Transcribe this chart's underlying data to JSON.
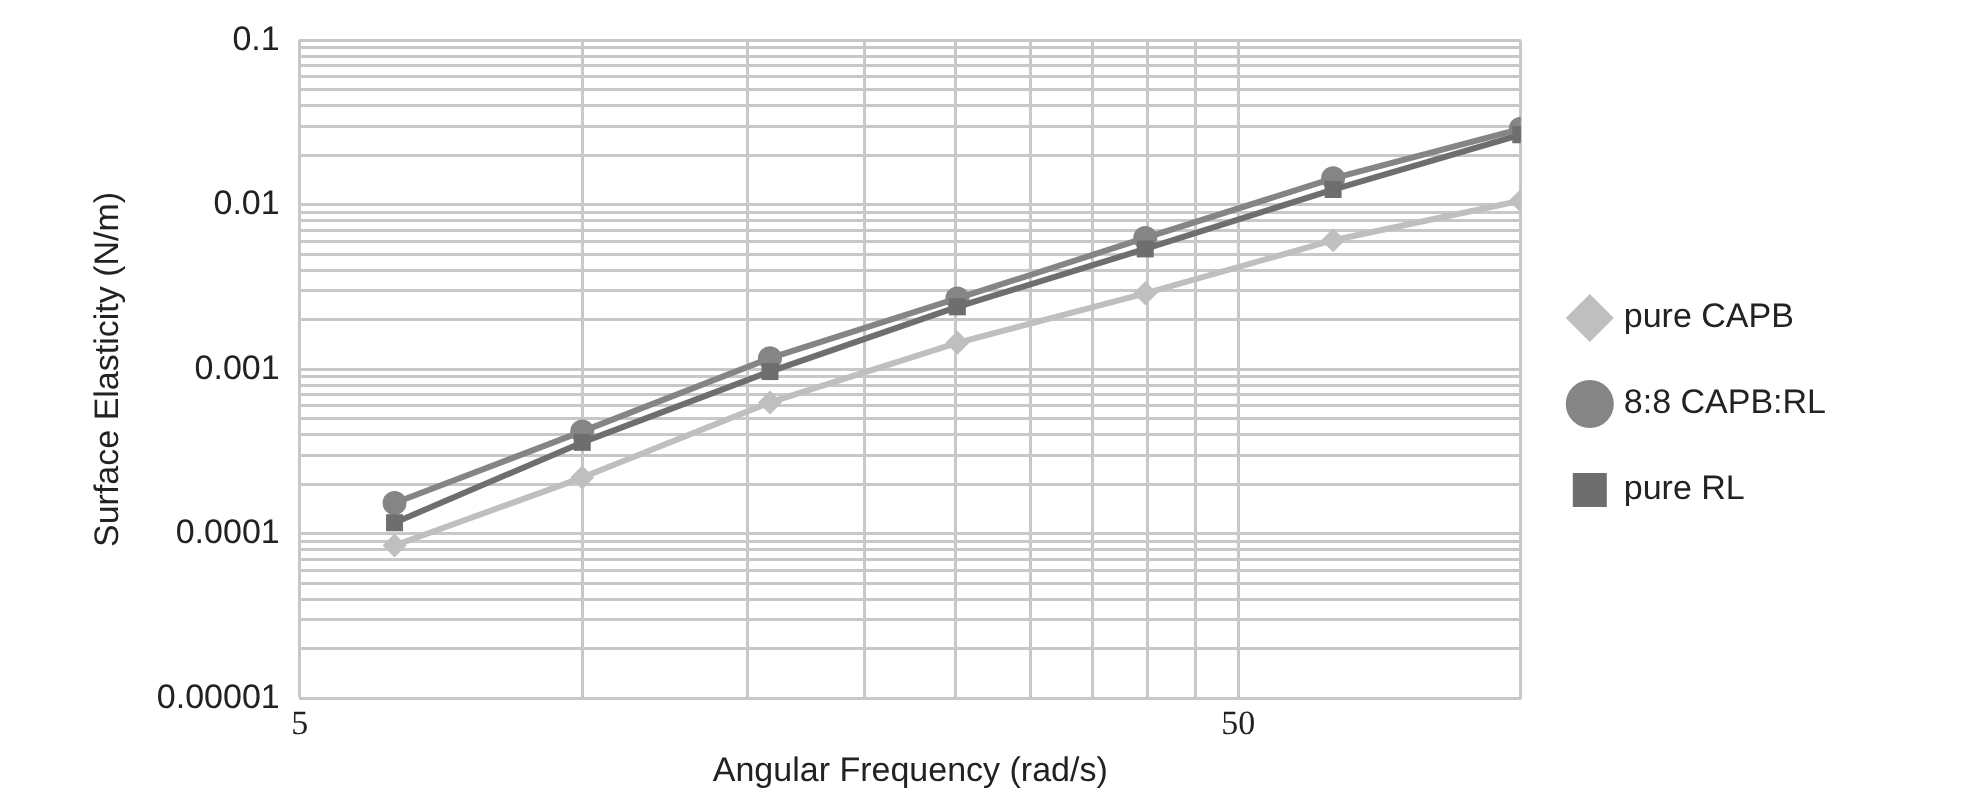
{
  "chart_data": {
    "type": "line",
    "xlabel": "Angular Frequency (rad/s)",
    "ylabel": "Surface Elasticity (N/m)",
    "log": "xy",
    "grid": true,
    "legend": "right",
    "line_style": "solid",
    "x": [
      6.31,
      10,
      15.85,
      25.1,
      39.8,
      63.1,
      100
    ],
    "xlim": [
      5,
      100
    ],
    "xticks": [
      5,
      {
        "value": 10,
        "label": null
      },
      {
        "value": 15,
        "label": null
      },
      {
        "value": 20,
        "label": null
      },
      {
        "value": 25,
        "label": null
      },
      {
        "value": 30,
        "label": null
      },
      {
        "value": 35,
        "label": null
      },
      {
        "value": 40,
        "label": null
      },
      {
        "value": 45,
        "label": null
      },
      50,
      {
        "value": 100,
        "label": null
      }
    ],
    "ylim": [
      1e-05,
      0.1
    ],
    "yticks": [
      {
        "value": 1e-05,
        "label": "0.00001"
      },
      {
        "value": 2e-05,
        "label": null
      },
      {
        "value": 3e-05,
        "label": null
      },
      {
        "value": 4e-05,
        "label": null
      },
      {
        "value": 5e-05,
        "label": null
      },
      {
        "value": 6e-05,
        "label": null
      },
      {
        "value": 7e-05,
        "label": null
      },
      {
        "value": 8e-05,
        "label": null
      },
      {
        "value": 9e-05,
        "label": null
      },
      0.0001,
      {
        "value": 0.0002,
        "label": null
      },
      {
        "value": 0.0003,
        "label": null
      },
      {
        "value": 0.0004,
        "label": null
      },
      {
        "value": 0.0005,
        "label": null
      },
      {
        "value": 0.0006,
        "label": null
      },
      {
        "value": 0.0007,
        "label": null
      },
      {
        "value": 0.0008,
        "label": null
      },
      {
        "value": 0.0009,
        "label": null
      },
      0.001,
      {
        "value": 0.002,
        "label": null
      },
      {
        "value": 0.003,
        "label": null
      },
      {
        "value": 0.004,
        "label": null
      },
      {
        "value": 0.005,
        "label": null
      },
      {
        "value": 0.006,
        "label": null
      },
      {
        "value": 0.007,
        "label": null
      },
      {
        "value": 0.008,
        "label": null
      },
      {
        "value": 0.009,
        "label": null
      },
      0.01,
      {
        "value": 0.02,
        "label": null
      },
      {
        "value": 0.03,
        "label": null
      },
      {
        "value": 0.04,
        "label": null
      },
      {
        "value": 0.05,
        "label": null
      },
      {
        "value": 0.06,
        "label": null
      },
      {
        "value": 0.07,
        "label": null
      },
      {
        "value": 0.08,
        "label": null
      },
      {
        "value": 0.09,
        "label": null
      },
      0.1
    ],
    "series": [
      {
        "name": "pure CAPB",
        "color": "#bfbfbf",
        "marker": "diamond",
        "values": [
          8.5e-05,
          0.00022,
          0.00063,
          0.00145,
          0.0029,
          0.0061,
          0.0106
        ]
      },
      {
        "name": "8:8 CAPB:RL",
        "color": "#858585",
        "marker": "circle",
        "values": [
          0.000154,
          0.00042,
          0.00117,
          0.0027,
          0.0063,
          0.0145,
          0.029
        ]
      },
      {
        "name": "pure RL",
        "color": "#6e6e6e",
        "marker": "square",
        "values": [
          0.000117,
          0.00036,
          0.00097,
          0.0024,
          0.0054,
          0.0124,
          0.0267
        ]
      }
    ]
  }
}
